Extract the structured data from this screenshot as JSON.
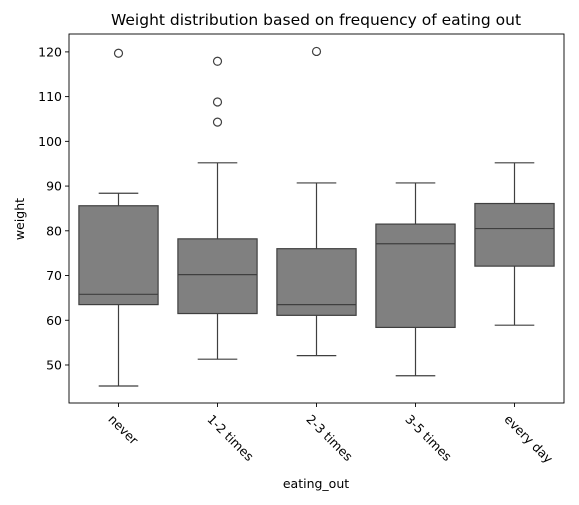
{
  "chart_data": {
    "type": "box",
    "title": "Weight distribution based on frequency of eating out",
    "xlabel": "eating_out",
    "ylabel": "weight",
    "ylim": [
      41.5,
      124
    ],
    "yticks": [
      50,
      60,
      70,
      80,
      90,
      100,
      110,
      120
    ],
    "grid": false,
    "box_color": "#808080",
    "line_color": "#3f3f3f",
    "categories": [
      "never",
      "1-2 times",
      "2-3 times",
      "3-5 times",
      "every day"
    ],
    "boxes": [
      {
        "whisker_low": 45.3,
        "q1": 63.5,
        "median": 65.8,
        "q3": 85.6,
        "whisker_high": 88.4,
        "outliers": [
          119.7
        ]
      },
      {
        "whisker_low": 51.3,
        "q1": 61.5,
        "median": 70.2,
        "q3": 78.2,
        "whisker_high": 95.2,
        "outliers": [
          104.3,
          108.8,
          117.9
        ]
      },
      {
        "whisker_low": 52.1,
        "q1": 61.1,
        "median": 63.5,
        "q3": 76.0,
        "whisker_high": 90.7,
        "outliers": [
          120.1
        ]
      },
      {
        "whisker_low": 47.6,
        "q1": 58.4,
        "median": 77.1,
        "q3": 81.5,
        "whisker_high": 90.7,
        "outliers": []
      },
      {
        "whisker_low": 58.9,
        "q1": 72.1,
        "median": 80.5,
        "q3": 86.1,
        "whisker_high": 95.2,
        "outliers": []
      }
    ]
  }
}
